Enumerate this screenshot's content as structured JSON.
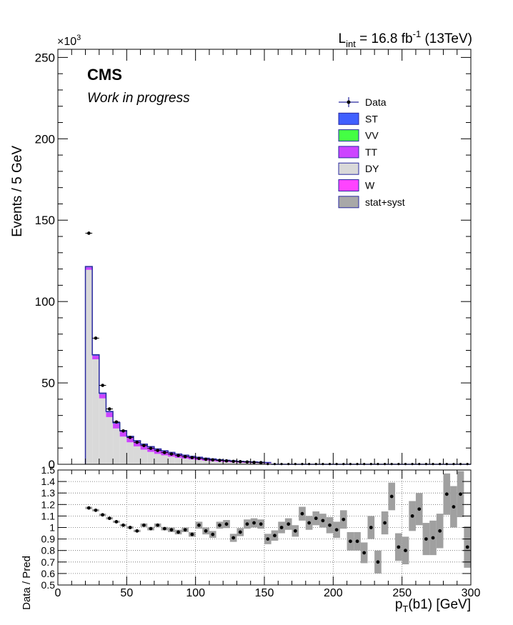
{
  "header": {
    "experiment": "CMS",
    "subtitle": "Work in progress",
    "lumi_prefix": "L",
    "lumi_sub": "int",
    "lumi_value": " = 16.8 fb",
    "lumi_sup": "-1",
    "lumi_suffix": " (13TeV)",
    "exp_mult_base": "×10",
    "exp_mult_pow": "3"
  },
  "chart_data": [
    {
      "type": "bar",
      "stacked": true,
      "ylabel": "Events / 5 GeV",
      "ylim": [
        0,
        255
      ],
      "y_units": "x1000 events",
      "xlim": [
        0,
        300
      ],
      "bin_width": 5,
      "x_bin_low": [
        20,
        25,
        30,
        35,
        40,
        45,
        50,
        55,
        60,
        65,
        70,
        75,
        80,
        85,
        90,
        95,
        100,
        105,
        110,
        115,
        120,
        125,
        130,
        135,
        140,
        145,
        150
      ],
      "yticks": [
        0,
        50,
        100,
        150,
        200,
        250
      ],
      "legend_position": "top-right",
      "series": [
        {
          "name": "DY",
          "color": "#d9d9d9",
          "values": [
            119.5,
            64.5,
            40.5,
            29.0,
            22.0,
            17.0,
            13.5,
            11.0,
            9.0,
            7.6,
            6.4,
            5.5,
            4.7,
            4.0,
            3.5,
            3.0,
            2.6,
            2.2,
            1.9,
            1.6,
            1.4,
            1.2,
            1.0,
            0.9,
            0.8,
            0.7,
            0.6
          ]
        },
        {
          "name": "TT",
          "color": "#cc44ff",
          "values": [
            1.5,
            2.2,
            2.6,
            2.9,
            3.0,
            3.1,
            3.1,
            3.0,
            2.9,
            2.8,
            2.6,
            2.4,
            2.2,
            2.0,
            1.8,
            1.6,
            1.5,
            1.3,
            1.2,
            1.0,
            0.9,
            0.8,
            0.7,
            0.6,
            0.5,
            0.45,
            0.4
          ]
        },
        {
          "name": "ST",
          "color": "#4060ff",
          "values": [
            0.2,
            0.3,
            0.35,
            0.35,
            0.35,
            0.35,
            0.35,
            0.3,
            0.3,
            0.3,
            0.28,
            0.26,
            0.24,
            0.22,
            0.2,
            0.18,
            0.16,
            0.15,
            0.13,
            0.12,
            0.1,
            0.1,
            0.09,
            0.08,
            0.07,
            0.06,
            0.05
          ]
        },
        {
          "name": "VV",
          "color": "#44ff44",
          "values": [
            0.1,
            0.1,
            0.1,
            0.1,
            0.1,
            0.1,
            0.1,
            0.1,
            0.08,
            0.08,
            0.07,
            0.06,
            0.06,
            0.05,
            0.05,
            0.04,
            0.04,
            0.03,
            0.03,
            0.03,
            0.03,
            0.02,
            0.02,
            0.02,
            0.02,
            0.02,
            0.02
          ]
        },
        {
          "name": "W",
          "color": "#ff44ff",
          "values": [
            0.2,
            0.2,
            0.2,
            0.15,
            0.15,
            0.15,
            0.1,
            0.1,
            0.1,
            0.1,
            0.08,
            0.08,
            0.07,
            0.06,
            0.05,
            0.05,
            0.04,
            0.04,
            0.03,
            0.03,
            0.03,
            0.03,
            0.02,
            0.02,
            0.02,
            0.02,
            0.02
          ]
        }
      ],
      "data_points": {
        "name": "Data",
        "x": [
          22.5,
          27.5,
          32.5,
          37.5,
          42.5,
          47.5,
          52.5,
          57.5,
          62.5,
          67.5,
          72.5,
          77.5,
          82.5,
          87.5,
          92.5,
          97.5,
          102.5,
          107.5,
          112.5,
          117.5,
          122.5,
          127.5,
          132.5,
          137.5,
          142.5,
          147.5
        ],
        "y": [
          142,
          77.5,
          48.5,
          34,
          26,
          20.5,
          16.5,
          13.5,
          11.5,
          9.8,
          8.5,
          7.2,
          6.3,
          5.4,
          4.7,
          4.1,
          3.6,
          3.1,
          2.7,
          2.4,
          2.1,
          1.8,
          1.6,
          1.4,
          1.2,
          1.0
        ]
      },
      "extra_legend": [
        "stat+syst"
      ]
    },
    {
      "type": "scatter",
      "ylabel": "Data / Pred",
      "xlabel": "p_T(b1) [GeV]",
      "ylim": [
        0.5,
        1.5
      ],
      "xlim": [
        0,
        300
      ],
      "yticks": [
        "0.5",
        "0.6",
        "0.7",
        "0.8",
        "0.9",
        "1",
        "1.1",
        "1.2",
        "1.3",
        "1.4",
        "1.5"
      ],
      "xticks": [
        "0",
        "50",
        "100",
        "150",
        "200",
        "250",
        "300"
      ],
      "grid": true,
      "x": [
        22.5,
        27.5,
        32.5,
        37.5,
        42.5,
        47.5,
        52.5,
        57.5,
        62.5,
        67.5,
        72.5,
        77.5,
        82.5,
        87.5,
        92.5,
        97.5,
        102.5,
        107.5,
        112.5,
        117.5,
        122.5,
        127.5,
        132.5,
        137.5,
        142.5,
        147.5,
        152.5,
        157.5,
        162.5,
        167.5,
        172.5,
        177.5,
        182.5,
        187.5,
        192.5,
        197.5,
        202.5,
        207.5,
        212.5,
        217.5,
        222.5,
        227.5,
        232.5,
        237.5,
        242.5,
        247.5,
        252.5,
        257.5,
        262.5,
        267.5,
        272.5,
        277.5,
        282.5,
        287.5,
        292.5,
        297.5
      ],
      "values": [
        1.17,
        1.15,
        1.11,
        1.08,
        1.05,
        1.02,
        1.0,
        0.97,
        1.02,
        0.99,
        1.02,
        0.99,
        0.98,
        0.96,
        0.98,
        0.94,
        1.02,
        0.97,
        0.94,
        1.02,
        1.03,
        0.91,
        0.96,
        1.03,
        1.04,
        1.03,
        0.9,
        0.93,
        1.0,
        1.03,
        0.97,
        1.12,
        1.04,
        1.08,
        1.06,
        1.02,
        0.98,
        1.07,
        0.88,
        0.88,
        0.78,
        1.0,
        0.7,
        1.04,
        1.27,
        0.83,
        0.8,
        1.1,
        1.16,
        0.9,
        0.91,
        0.97,
        1.29,
        1.18,
        1.29,
        0.83
      ],
      "band_half_width": [
        0.01,
        0.01,
        0.01,
        0.01,
        0.01,
        0.01,
        0.01,
        0.01,
        0.015,
        0.015,
        0.015,
        0.015,
        0.02,
        0.02,
        0.02,
        0.02,
        0.03,
        0.03,
        0.03,
        0.03,
        0.035,
        0.035,
        0.035,
        0.04,
        0.04,
        0.04,
        0.045,
        0.045,
        0.05,
        0.05,
        0.05,
        0.06,
        0.06,
        0.06,
        0.06,
        0.07,
        0.07,
        0.08,
        0.08,
        0.08,
        0.09,
        0.1,
        0.1,
        0.1,
        0.12,
        0.12,
        0.12,
        0.13,
        0.14,
        0.14,
        0.15,
        0.15,
        0.18,
        0.18,
        0.2,
        0.18
      ]
    }
  ]
}
